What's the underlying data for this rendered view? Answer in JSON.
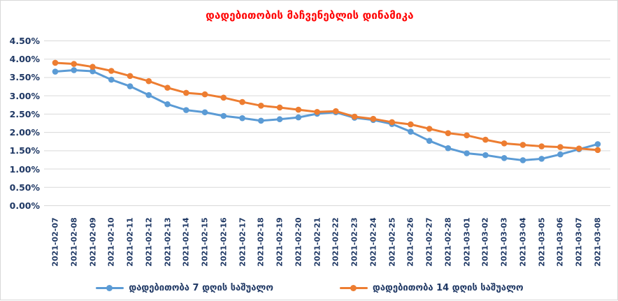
{
  "frame": {
    "border_color": "#d8d8d8",
    "background": "#ffffff"
  },
  "chart_data": {
    "type": "line",
    "title": "დადებითობის მაჩვენებლის დინამიკა",
    "title_color": "#ff0000",
    "grid": true,
    "gridline_color": "#d9d9d9",
    "axis_label_color": "#1f3864",
    "legend_position": "bottom",
    "ylim": [
      0,
      4.5
    ],
    "y_tick_step": 0.5,
    "y_ticks": [
      "0.00%",
      "0.50%",
      "1.00%",
      "1.50%",
      "2.00%",
      "2.50%",
      "3.00%",
      "3.50%",
      "4.00%",
      "4.50%"
    ],
    "categories": [
      "2021-02-07",
      "2021-02-08",
      "2021-02-09",
      "2021-02-10",
      "2021-02-11",
      "2021-02-12",
      "2021-02-13",
      "2021-02-14",
      "2021-02-15",
      "2021-02-16",
      "2021-02-17",
      "2021-02-18",
      "2021-02-19",
      "2021-02-20",
      "2021-02-21",
      "2021-02-22",
      "2021-02-23",
      "2021-02-24",
      "2021-02-25",
      "2021-02-26",
      "2021-02-27",
      "2021-02-28",
      "2021-03-01",
      "2021-03-02",
      "2021-03-03",
      "2021-03-04",
      "2021-03-05",
      "2021-03-06",
      "2021-03-07",
      "2021-03-08"
    ],
    "series": [
      {
        "name": "დადებითობა 7 დღის საშუალო",
        "color": "#5b9bd5",
        "marker": "circle",
        "values": [
          3.66,
          3.7,
          3.67,
          3.44,
          3.26,
          3.02,
          2.77,
          2.61,
          2.55,
          2.45,
          2.39,
          2.32,
          2.36,
          2.41,
          2.51,
          2.55,
          2.4,
          2.34,
          2.23,
          2.02,
          1.77,
          1.57,
          1.43,
          1.38,
          1.3,
          1.24,
          1.28,
          1.4,
          1.54,
          1.68
        ]
      },
      {
        "name": "დადებითობა 14 დღის საშუალო",
        "color": "#ed7d31",
        "marker": "circle",
        "values": [
          3.9,
          3.87,
          3.79,
          3.68,
          3.54,
          3.4,
          3.22,
          3.08,
          3.04,
          2.95,
          2.83,
          2.73,
          2.68,
          2.62,
          2.56,
          2.58,
          2.43,
          2.37,
          2.28,
          2.22,
          2.1,
          1.98,
          1.92,
          1.8,
          1.7,
          1.66,
          1.62,
          1.6,
          1.56,
          1.52
        ]
      }
    ]
  }
}
